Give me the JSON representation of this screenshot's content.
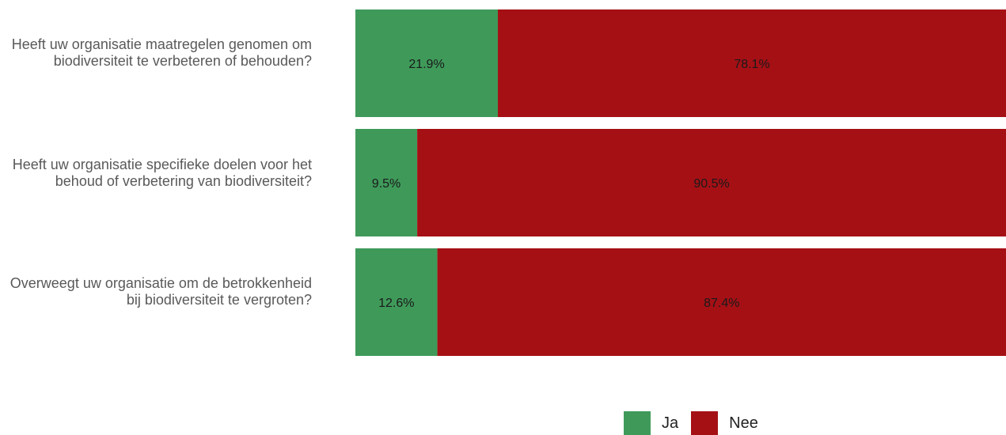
{
  "chart_data": {
    "type": "bar",
    "orientation": "horizontal",
    "stacked": true,
    "percent": true,
    "categories": [
      "Heeft uw organisatie maatregelen genomen om biodiversiteit te verbeteren of behouden?",
      "Heeft uw organisatie specifieke doelen voor het behoud of verbetering van biodiversiteit?",
      "Overweegt uw organisatie om de betrokkenheid bij biodiversiteit te vergroten?"
    ],
    "series": [
      {
        "name": "Ja",
        "color": "#3f9a5a",
        "values": [
          21.9,
          9.5,
          12.6
        ],
        "labels": [
          "21.9%",
          "9.5%",
          "12.6%"
        ]
      },
      {
        "name": "Nee",
        "color": "#a51015",
        "values": [
          78.1,
          90.5,
          87.4
        ],
        "labels": [
          "78.1%",
          "90.5%",
          "87.4%"
        ]
      }
    ],
    "xlim": [
      0,
      100
    ],
    "grid": false,
    "legend_position": "bottom"
  }
}
